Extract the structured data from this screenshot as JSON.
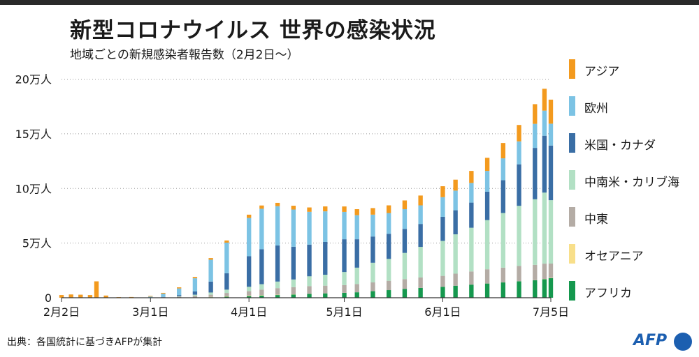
{
  "title": "新型コロナウイルス 世界の感染状況",
  "subtitle": "地域ごとの新規感染者報告数（2月2日〜）",
  "source": "出典：各国統計に基づきAFPが集計",
  "logo": "AFP",
  "colors": {
    "asia": "#f39a1e",
    "europe": "#7cc3e4",
    "us_canada": "#3a6ea5",
    "latam": "#b2e0c4",
    "middle_east": "#b4aca5",
    "oceania": "#f8df8a",
    "africa": "#15984e"
  },
  "legend": [
    {
      "key": "asia",
      "label": "アジア"
    },
    {
      "key": "europe",
      "label": "欧州"
    },
    {
      "key": "us_canada",
      "label": "米国・カナダ"
    },
    {
      "key": "latam",
      "label": "中南米・カリブ海"
    },
    {
      "key": "middle_east",
      "label": "中東"
    },
    {
      "key": "oceania",
      "label": "オセアニア"
    },
    {
      "key": "africa",
      "label": "アフリカ"
    }
  ],
  "chart_data": {
    "type": "bar",
    "stacked": true,
    "title": "新型コロナウイルス 世界の感染状況",
    "subtitle": "地域ごとの新規感染者報告数（2月2日〜）",
    "y_tick_labels": [
      "0",
      "5万人",
      "10万人",
      "15万人",
      "20万人"
    ],
    "y_ticks": [
      0,
      50000,
      100000,
      150000,
      200000
    ],
    "ylim": [
      0,
      215000
    ],
    "x_tick_labels": [
      "2月2日",
      "3月1日",
      "4月1日",
      "5月1日",
      "6月1日",
      "7月5日"
    ],
    "x_tick_dates": [
      "2020-02-02",
      "2020-03-01",
      "2020-04-01",
      "2020-05-01",
      "2020-06-01",
      "2020-07-05"
    ],
    "grid": "horizontal dotted",
    "legend_position": "right",
    "x": [
      "2020-02-02",
      "2020-02-05",
      "2020-02-08",
      "2020-02-11",
      "2020-02-13",
      "2020-02-16",
      "2020-02-20",
      "2020-02-24",
      "2020-03-01",
      "2020-03-05",
      "2020-03-10",
      "2020-03-15",
      "2020-03-20",
      "2020-03-25",
      "2020-04-01",
      "2020-04-05",
      "2020-04-10",
      "2020-04-15",
      "2020-04-20",
      "2020-04-25",
      "2020-05-01",
      "2020-05-05",
      "2020-05-10",
      "2020-05-15",
      "2020-05-20",
      "2020-05-25",
      "2020-06-01",
      "2020-06-05",
      "2020-06-10",
      "2020-06-15",
      "2020-06-20",
      "2020-06-25",
      "2020-06-30",
      "2020-07-03",
      "2020-07-05"
    ],
    "series": [
      {
        "name": "アフリカ",
        "key": "africa",
        "values": [
          0,
          0,
          0,
          0,
          0,
          0,
          0,
          0,
          0,
          0,
          0,
          200,
          500,
          1000,
          1500,
          2000,
          2500,
          3000,
          3500,
          4000,
          4500,
          5000,
          6000,
          7000,
          8000,
          9000,
          10000,
          11000,
          12000,
          13000,
          14000,
          15000,
          16000,
          17000,
          18000
        ]
      },
      {
        "name": "オセアニア",
        "key": "oceania",
        "values": [
          0,
          0,
          0,
          0,
          0,
          0,
          0,
          0,
          0,
          0,
          0,
          100,
          300,
          400,
          500,
          400,
          300,
          200,
          100,
          50,
          20,
          20,
          20,
          20,
          20,
          20,
          20,
          20,
          30,
          40,
          50,
          80,
          100,
          200,
          250
        ]
      },
      {
        "name": "中東",
        "key": "middle_east",
        "values": [
          0,
          0,
          0,
          0,
          0,
          0,
          0,
          0,
          100,
          500,
          1000,
          1500,
          2000,
          3000,
          4000,
          5000,
          6000,
          6500,
          7000,
          7000,
          7000,
          7500,
          8000,
          8500,
          9000,
          9500,
          10000,
          11000,
          12000,
          13000,
          13500,
          14000,
          14000,
          14000,
          13000
        ]
      },
      {
        "name": "中南米・カリブ海",
        "key": "latam",
        "values": [
          0,
          0,
          0,
          0,
          0,
          0,
          0,
          0,
          0,
          0,
          500,
          1000,
          2000,
          3000,
          4000,
          5000,
          6000,
          7000,
          9000,
          10000,
          12000,
          15000,
          18000,
          20000,
          24000,
          28000,
          32000,
          36000,
          40000,
          45000,
          50000,
          55000,
          60000,
          65000,
          58000
        ]
      },
      {
        "name": "米国・カナダ",
        "key": "us_canada",
        "values": [
          0,
          0,
          0,
          0,
          0,
          0,
          0,
          0,
          0,
          200,
          1000,
          3000,
          10000,
          15000,
          28000,
          32000,
          33000,
          30000,
          29000,
          30000,
          30000,
          26000,
          24000,
          23000,
          22000,
          21000,
          22000,
          22000,
          23000,
          26000,
          30000,
          38000,
          47000,
          52000,
          50000
        ]
      },
      {
        "name": "欧州",
        "key": "europe",
        "values": [
          0,
          0,
          0,
          0,
          0,
          0,
          0,
          200,
          1000,
          3000,
          6000,
          12000,
          20000,
          28000,
          35000,
          37000,
          36000,
          34000,
          30000,
          28000,
          25000,
          22000,
          20000,
          19000,
          18000,
          17000,
          18000,
          18000,
          18000,
          19000,
          20000,
          21000,
          22000,
          23000,
          20000
        ]
      },
      {
        "name": "アジア",
        "key": "asia",
        "values": [
          2500,
          3000,
          2800,
          2500,
          15000,
          2000,
          600,
          500,
          500,
          800,
          1000,
          1200,
          1500,
          2000,
          3000,
          3000,
          3000,
          3500,
          4000,
          4500,
          5000,
          5500,
          6000,
          7000,
          8000,
          9000,
          10000,
          10000,
          11000,
          12000,
          14000,
          15000,
          18000,
          20000,
          22000
        ]
      }
    ]
  }
}
